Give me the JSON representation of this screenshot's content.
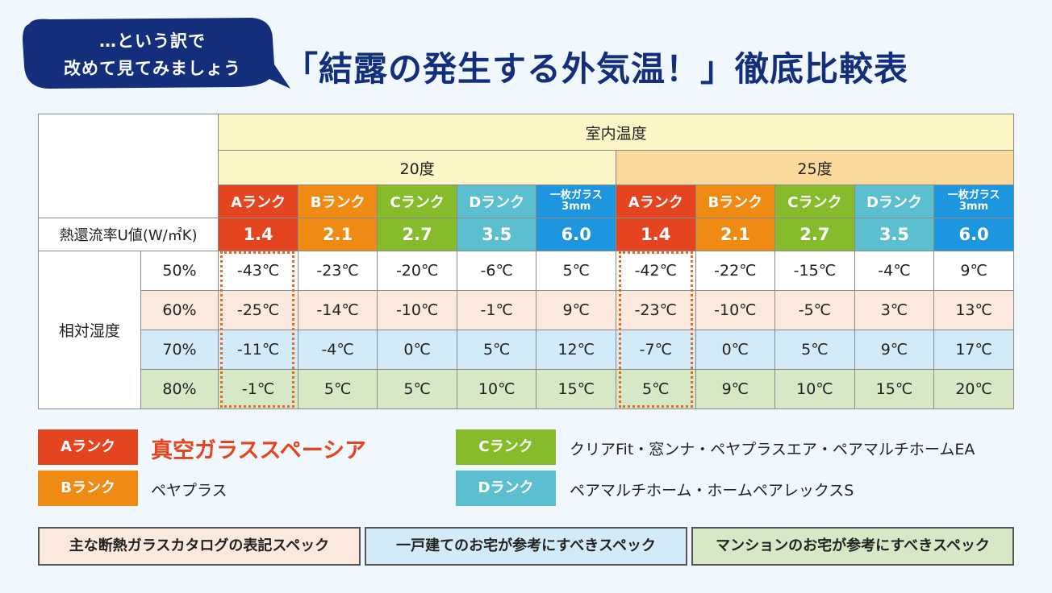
{
  "header": {
    "bubble_line1": "…という訳で",
    "bubble_line2": "改めて見てみましょう",
    "title": "「結露の発生する外気温！」徹底比較表"
  },
  "table": {
    "indoor_label": "室内温度",
    "temp_groups": [
      "20度",
      "25度"
    ],
    "rank_headers": [
      "Aランク",
      "Bランク",
      "Cランク",
      "Dランク",
      "一枚ガラス",
      "3mm"
    ],
    "u_label": "熱還流率U値(W/㎡K)",
    "u_values": [
      "1.4",
      "2.1",
      "2.7",
      "3.5",
      "6.0",
      "1.4",
      "2.1",
      "2.7",
      "3.5",
      "6.0"
    ],
    "humidity_label": "相対湿度",
    "rows": [
      {
        "hum": "50%",
        "vals": [
          "-43℃",
          "-23℃",
          "-20℃",
          "-6℃",
          "5℃",
          "-42℃",
          "-22℃",
          "-15℃",
          "-4℃",
          "9℃"
        ]
      },
      {
        "hum": "60%",
        "vals": [
          "-25℃",
          "-14℃",
          "-10℃",
          "-1℃",
          "9℃",
          "-23℃",
          "-10℃",
          "-5℃",
          "3℃",
          "13℃"
        ]
      },
      {
        "hum": "70%",
        "vals": [
          "-11℃",
          "-4℃",
          "0℃",
          "5℃",
          "12℃",
          "-7℃",
          "0℃",
          "5℃",
          "9℃",
          "17℃"
        ]
      },
      {
        "hum": "80%",
        "vals": [
          "-1℃",
          "5℃",
          "5℃",
          "10℃",
          "15℃",
          "5℃",
          "9℃",
          "10℃",
          "15℃",
          "20℃"
        ]
      }
    ]
  },
  "legend": {
    "a_label": "Aランク",
    "a_text": "真空ガラススペーシア",
    "b_label": "Bランク",
    "b_text": "ペヤプラス",
    "c_label": "Cランク",
    "c_text": "クリアFit・窓ンナ・ペヤプラスエア・ペアマルチホームEA",
    "d_label": "Dランク",
    "d_text": "ペアマルチホーム・ホームペアレックスS"
  },
  "footer": {
    "box1": "主な断熱ガラスカタログの表記スペック",
    "box2": "一戸建てのお宅が参考にすべきスペック",
    "box3": "マンションのお宅が参考にすべきスペック"
  },
  "colors": {
    "rank_a": "#e4441f",
    "rank_b": "#ef8a12",
    "rank_c": "#86bc2b",
    "rank_d": "#5cbfcf",
    "single_glass": "#1d95df",
    "title": "#132e7a"
  }
}
